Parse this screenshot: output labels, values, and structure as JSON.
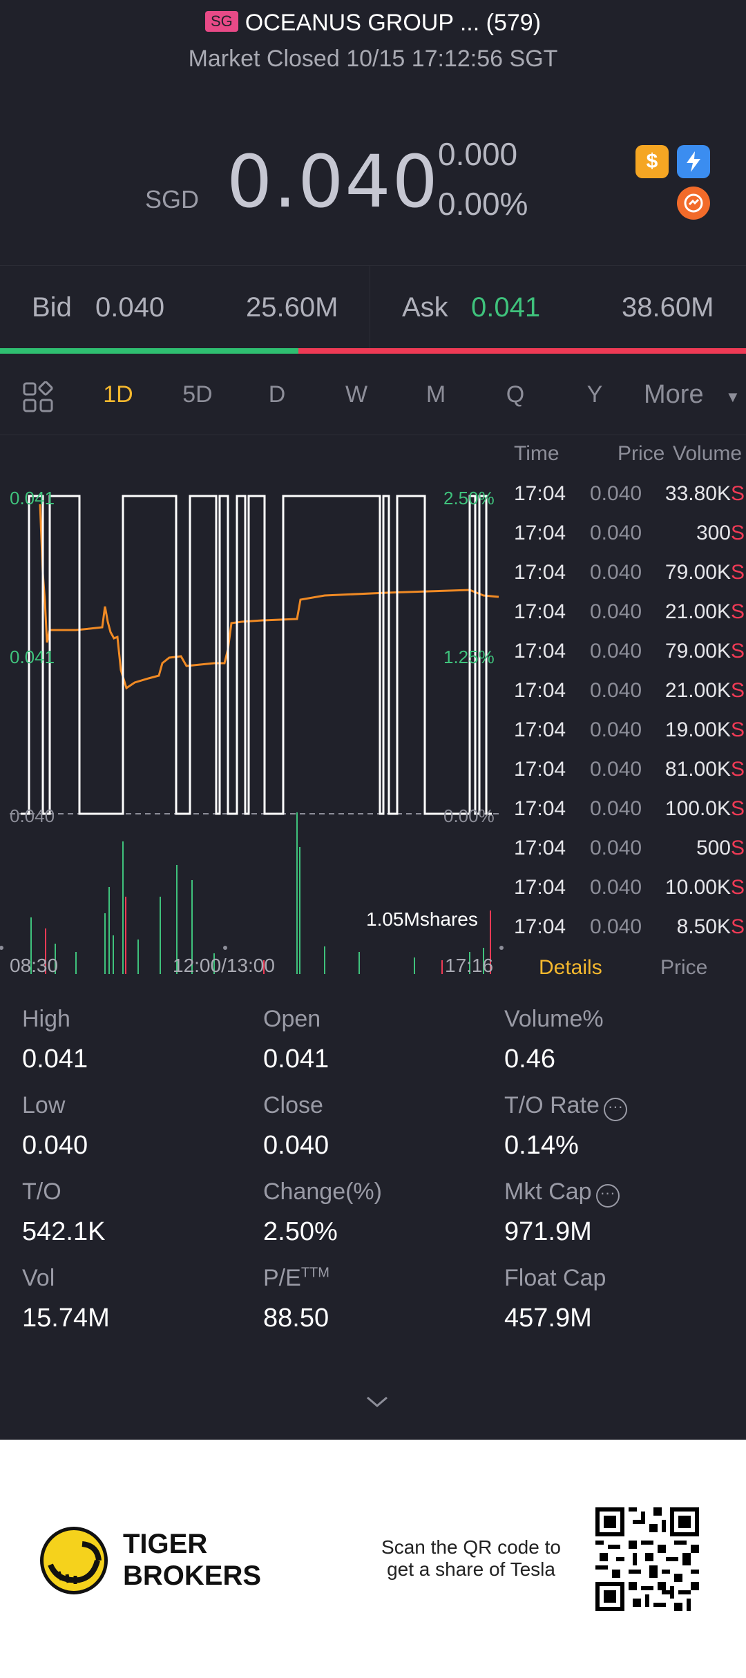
{
  "header": {
    "exchange_badge": "SG",
    "title": "OCEANUS GROUP ... (579)",
    "status": "Market Closed 10/15 17:12:56 SGT",
    "currency": "SGD",
    "price": "0.040",
    "change": "0.000",
    "change_pct": "0.00%",
    "icons": [
      "dollar-badge-icon",
      "flash-icon",
      "swap-icon"
    ]
  },
  "bid_ask": {
    "bid_label": "Bid",
    "bid_price": "0.040",
    "bid_size": "25.60M",
    "ask_label": "Ask",
    "ask_price": "0.041",
    "ask_size": "38.60M",
    "bid_ratio": 0.4
  },
  "tabs": {
    "items": [
      "1D",
      "5D",
      "D",
      "W",
      "M",
      "Q",
      "Y"
    ],
    "active": "1D",
    "more_label": "More"
  },
  "chart": {
    "y_left": [
      "0.041",
      "0.041",
      "0.040"
    ],
    "y_right": [
      "2.50%",
      "1.25%",
      "0.00%"
    ],
    "volume_label": "1.05Mshares",
    "time_labels": [
      "08:30",
      "12:00/13:00",
      "17:16"
    ]
  },
  "chart_data": {
    "type": "line",
    "x": [
      "08:30",
      "12:00/13:00",
      "17:16"
    ],
    "ylim": [
      0.04,
      0.041
    ],
    "series": [],
    "colors": {
      "line": "#f0922b",
      "grid": "#8d8e99",
      "up": "#3fc27c",
      "down": "#ef3a55"
    }
  },
  "trades": {
    "headers": {
      "time": "Time",
      "price": "Price",
      "volume": "Volume"
    },
    "rows": [
      {
        "time": "17:04",
        "price": "0.040",
        "volume": "33.80K",
        "side": "S"
      },
      {
        "time": "17:04",
        "price": "0.040",
        "volume": "300",
        "side": "S"
      },
      {
        "time": "17:04",
        "price": "0.040",
        "volume": "79.00K",
        "side": "S"
      },
      {
        "time": "17:04",
        "price": "0.040",
        "volume": "21.00K",
        "side": "S"
      },
      {
        "time": "17:04",
        "price": "0.040",
        "volume": "79.00K",
        "side": "S"
      },
      {
        "time": "17:04",
        "price": "0.040",
        "volume": "21.00K",
        "side": "S"
      },
      {
        "time": "17:04",
        "price": "0.040",
        "volume": "19.00K",
        "side": "S"
      },
      {
        "time": "17:04",
        "price": "0.040",
        "volume": "81.00K",
        "side": "S"
      },
      {
        "time": "17:04",
        "price": "0.040",
        "volume": "100.0K",
        "side": "S"
      },
      {
        "time": "17:04",
        "price": "0.040",
        "volume": "500",
        "side": "S"
      },
      {
        "time": "17:04",
        "price": "0.040",
        "volume": "10.00K",
        "side": "S"
      },
      {
        "time": "17:04",
        "price": "0.040",
        "volume": "8.50K",
        "side": "S"
      }
    ],
    "tab_details": "Details",
    "tab_price": "Price"
  },
  "stats": {
    "high_label": "High",
    "high": "0.041",
    "open_label": "Open",
    "open": "0.041",
    "volpct_label": "Volume%",
    "volpct": "0.46",
    "low_label": "Low",
    "low": "0.040",
    "close_label": "Close",
    "close": "0.040",
    "torate_label": "T/O Rate",
    "torate": "0.14%",
    "to_label": "T/O",
    "to": "542.1K",
    "change_label": "Change(%)",
    "change": "2.50%",
    "mktcap_label": "Mkt Cap",
    "mktcap": "971.9M",
    "vol_label": "Vol",
    "vol": "15.74M",
    "pe_label": "P/E",
    "pe_sup": "TTM",
    "pe": "88.50",
    "floatcap_label": "Float Cap",
    "floatcap": "457.9M"
  },
  "footer": {
    "brand_line1": "TIGER",
    "brand_line2": "BROKERS",
    "scan_line1": "Scan the QR code to",
    "scan_line2": "get a share of Tesla"
  }
}
